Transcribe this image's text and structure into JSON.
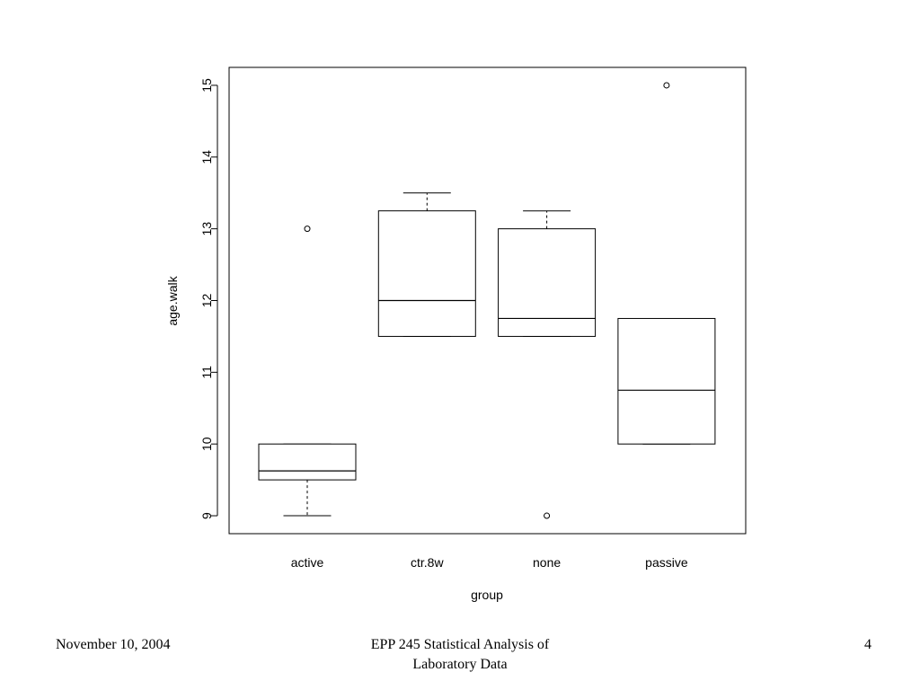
{
  "chart_data": {
    "type": "boxplot",
    "xlabel": "group",
    "ylabel": "age.walk",
    "categories": [
      "active",
      "ctr.8w",
      "none",
      "passive"
    ],
    "boxes": [
      {
        "category": "active",
        "whisker_low": 9.0,
        "q1": 9.5,
        "median": 9.625,
        "q3": 10.0,
        "whisker_high": 10.0,
        "outliers": [
          13.0
        ]
      },
      {
        "category": "ctr.8w",
        "whisker_low": 11.5,
        "q1": 11.5,
        "median": 12.0,
        "q3": 13.25,
        "whisker_high": 13.5,
        "outliers": []
      },
      {
        "category": "none",
        "whisker_low": 11.5,
        "q1": 11.5,
        "median": 11.75,
        "q3": 13.0,
        "whisker_high": 13.25,
        "outliers": [
          9.0
        ]
      },
      {
        "category": "passive",
        "whisker_low": 10.0,
        "q1": 10.0,
        "median": 10.75,
        "q3": 11.75,
        "whisker_high": 11.75,
        "outliers": [
          15.0
        ]
      }
    ],
    "y_ticks": [
      9,
      10,
      11,
      12,
      13,
      14,
      15
    ],
    "ylim": [
      8.75,
      15.25
    ],
    "grid": false
  },
  "footer": {
    "date": "November 10, 2004",
    "title_line1": "EPP 245 Statistical Analysis of",
    "title_line2": "Laboratory Data",
    "page": "4"
  }
}
